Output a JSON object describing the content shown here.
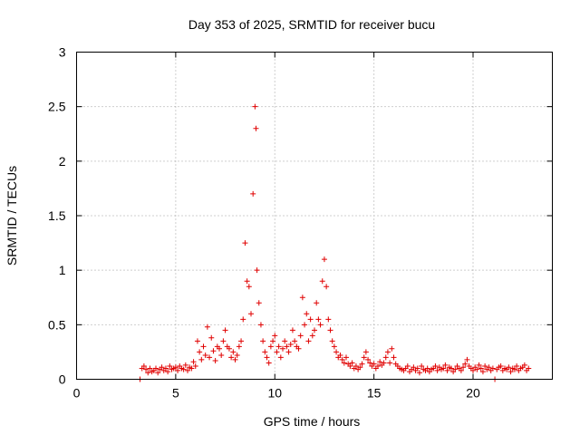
{
  "chart_data": {
    "type": "scatter",
    "title": "Day 353 of 2025, SRMTID for receiver bucu",
    "xlabel": "GPS time / hours",
    "ylabel": "SRMTID / TECUs",
    "xlim": [
      0,
      24
    ],
    "ylim": [
      0,
      3
    ],
    "xticks": [
      0,
      5,
      10,
      15,
      20
    ],
    "xtick_labels": [
      "0",
      "5",
      "10",
      "15",
      "20"
    ],
    "yticks": [
      0,
      0.5,
      1,
      1.5,
      2,
      2.5,
      3
    ],
    "ytick_labels": [
      "0",
      "0.5",
      "1",
      "1.5",
      "2",
      "2.5",
      "3"
    ],
    "grid": true,
    "marker": "+",
    "color": "#e00000",
    "series": [
      {
        "name": "bucu",
        "x": [
          3.2,
          3.3,
          3.4,
          3.5,
          3.6,
          3.7,
          3.8,
          3.9,
          4.0,
          4.1,
          4.2,
          4.3,
          4.4,
          4.5,
          4.6,
          4.7,
          4.8,
          4.9,
          5.0,
          5.1,
          5.2,
          5.3,
          5.4,
          5.5,
          5.6,
          5.7,
          5.8,
          5.9,
          6.0,
          6.1,
          6.2,
          6.3,
          6.4,
          6.5,
          6.6,
          6.7,
          6.8,
          6.9,
          7.0,
          7.1,
          7.2,
          7.3,
          7.4,
          7.5,
          7.6,
          7.7,
          7.8,
          7.9,
          8.0,
          8.1,
          8.2,
          8.3,
          8.4,
          8.5,
          8.6,
          8.7,
          8.8,
          8.9,
          9.0,
          9.05,
          9.1,
          9.2,
          9.3,
          9.4,
          9.5,
          9.6,
          9.7,
          9.8,
          9.9,
          10.0,
          10.1,
          10.2,
          10.3,
          10.4,
          10.5,
          10.6,
          10.7,
          10.8,
          10.9,
          11.0,
          11.1,
          11.2,
          11.3,
          11.4,
          11.5,
          11.6,
          11.7,
          11.8,
          11.9,
          12.0,
          12.1,
          12.2,
          12.3,
          12.4,
          12.5,
          12.6,
          12.7,
          12.8,
          12.9,
          13.0,
          13.1,
          13.2,
          13.3,
          13.4,
          13.5,
          13.6,
          13.7,
          13.8,
          13.9,
          14.0,
          14.1,
          14.2,
          14.3,
          14.4,
          14.5,
          14.6,
          14.7,
          14.8,
          14.9,
          15.0,
          15.1,
          15.2,
          15.3,
          15.4,
          15.5,
          15.6,
          15.7,
          15.8,
          15.9,
          16.0,
          16.1,
          16.2,
          16.3,
          16.4,
          16.5,
          16.6,
          16.7,
          16.8,
          16.9,
          17.0,
          17.1,
          17.2,
          17.3,
          17.4,
          17.5,
          17.6,
          17.7,
          17.8,
          17.9,
          18.0,
          18.1,
          18.2,
          18.3,
          18.4,
          18.5,
          18.6,
          18.7,
          18.8,
          18.9,
          19.0,
          19.1,
          19.2,
          19.3,
          19.4,
          19.5,
          19.6,
          19.7,
          19.8,
          19.9,
          20.0,
          20.1,
          20.2,
          20.3,
          20.4,
          20.5,
          20.6,
          20.7,
          20.8,
          20.9,
          21.0,
          21.1,
          21.2,
          21.3,
          21.4,
          21.5,
          21.6,
          21.7,
          21.8,
          21.9,
          22.0,
          22.1,
          22.2,
          22.3,
          22.4,
          22.5,
          22.6,
          22.7,
          22.8
        ],
        "y": [
          0.0,
          0.1,
          0.12,
          0.09,
          0.06,
          0.1,
          0.07,
          0.08,
          0.1,
          0.06,
          0.09,
          0.11,
          0.08,
          0.1,
          0.07,
          0.12,
          0.09,
          0.1,
          0.11,
          0.08,
          0.12,
          0.1,
          0.09,
          0.13,
          0.08,
          0.11,
          0.1,
          0.16,
          0.12,
          0.35,
          0.25,
          0.18,
          0.3,
          0.22,
          0.48,
          0.2,
          0.38,
          0.26,
          0.17,
          0.3,
          0.28,
          0.22,
          0.35,
          0.45,
          0.3,
          0.28,
          0.2,
          0.25,
          0.18,
          0.22,
          0.3,
          0.35,
          0.55,
          1.25,
          0.9,
          0.85,
          0.6,
          1.7,
          2.5,
          2.3,
          1.0,
          0.7,
          0.5,
          0.35,
          0.25,
          0.2,
          0.15,
          0.3,
          0.35,
          0.4,
          0.25,
          0.3,
          0.2,
          0.28,
          0.35,
          0.3,
          0.25,
          0.32,
          0.45,
          0.35,
          0.3,
          0.28,
          0.4,
          0.75,
          0.5,
          0.6,
          0.35,
          0.55,
          0.4,
          0.45,
          0.7,
          0.55,
          0.5,
          0.9,
          1.1,
          0.85,
          0.55,
          0.45,
          0.35,
          0.3,
          0.25,
          0.2,
          0.22,
          0.18,
          0.15,
          0.2,
          0.14,
          0.12,
          0.15,
          0.1,
          0.12,
          0.09,
          0.11,
          0.14,
          0.2,
          0.25,
          0.18,
          0.15,
          0.12,
          0.14,
          0.1,
          0.12,
          0.16,
          0.13,
          0.15,
          0.2,
          0.25,
          0.15,
          0.28,
          0.2,
          0.14,
          0.12,
          0.1,
          0.09,
          0.08,
          0.1,
          0.12,
          0.07,
          0.09,
          0.11,
          0.08,
          0.1,
          0.06,
          0.12,
          0.09,
          0.08,
          0.1,
          0.07,
          0.09,
          0.1,
          0.12,
          0.08,
          0.11,
          0.09,
          0.1,
          0.13,
          0.08,
          0.11,
          0.1,
          0.07,
          0.09,
          0.12,
          0.1,
          0.08,
          0.11,
          0.14,
          0.18,
          0.12,
          0.1,
          0.08,
          0.11,
          0.09,
          0.13,
          0.1,
          0.07,
          0.12,
          0.09,
          0.11,
          0.08,
          0.1,
          0.0,
          0.09,
          0.11,
          0.12,
          0.08,
          0.1,
          0.09,
          0.11,
          0.07,
          0.1,
          0.09,
          0.12,
          0.08,
          0.1,
          0.11,
          0.13,
          0.08,
          0.1
        ]
      }
    ]
  }
}
